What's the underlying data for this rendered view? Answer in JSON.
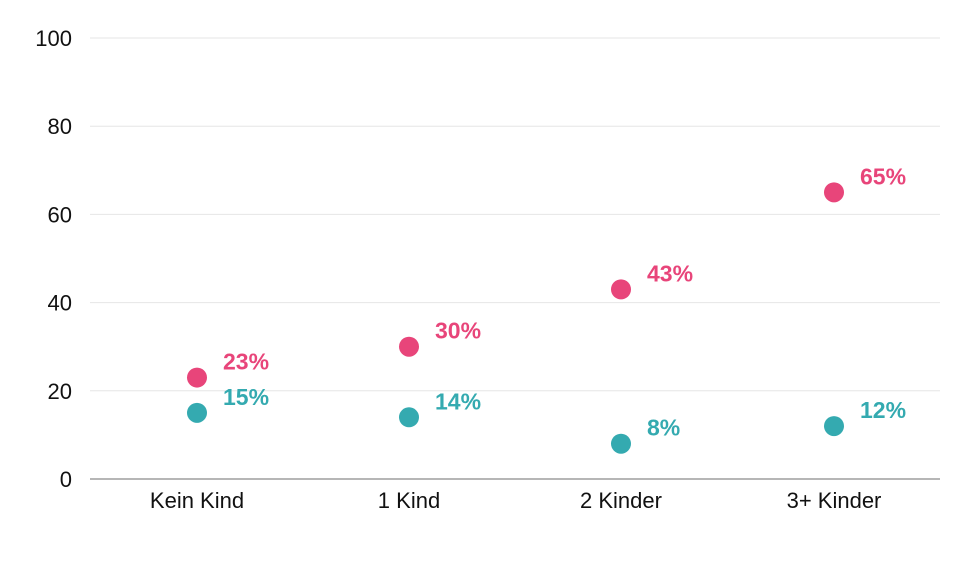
{
  "chart_data": {
    "type": "scatter",
    "categories": [
      "Kein Kind",
      "1 Kind",
      "2 Kinder",
      "3+ Kinder"
    ],
    "series": [
      {
        "color": "#e8457a",
        "values": [
          23,
          30,
          43,
          65
        ],
        "labels": [
          "23%",
          "30%",
          "43%",
          "65%"
        ]
      },
      {
        "color": "#34aab0",
        "values": [
          15,
          14,
          8,
          12
        ],
        "labels": [
          "15%",
          "14%",
          "8%",
          "12%"
        ]
      }
    ],
    "yticks": [
      0,
      20,
      40,
      60,
      80,
      100
    ],
    "ylim": [
      0,
      100
    ],
    "grid": true,
    "title": "",
    "xlabel": "",
    "ylabel": ""
  }
}
